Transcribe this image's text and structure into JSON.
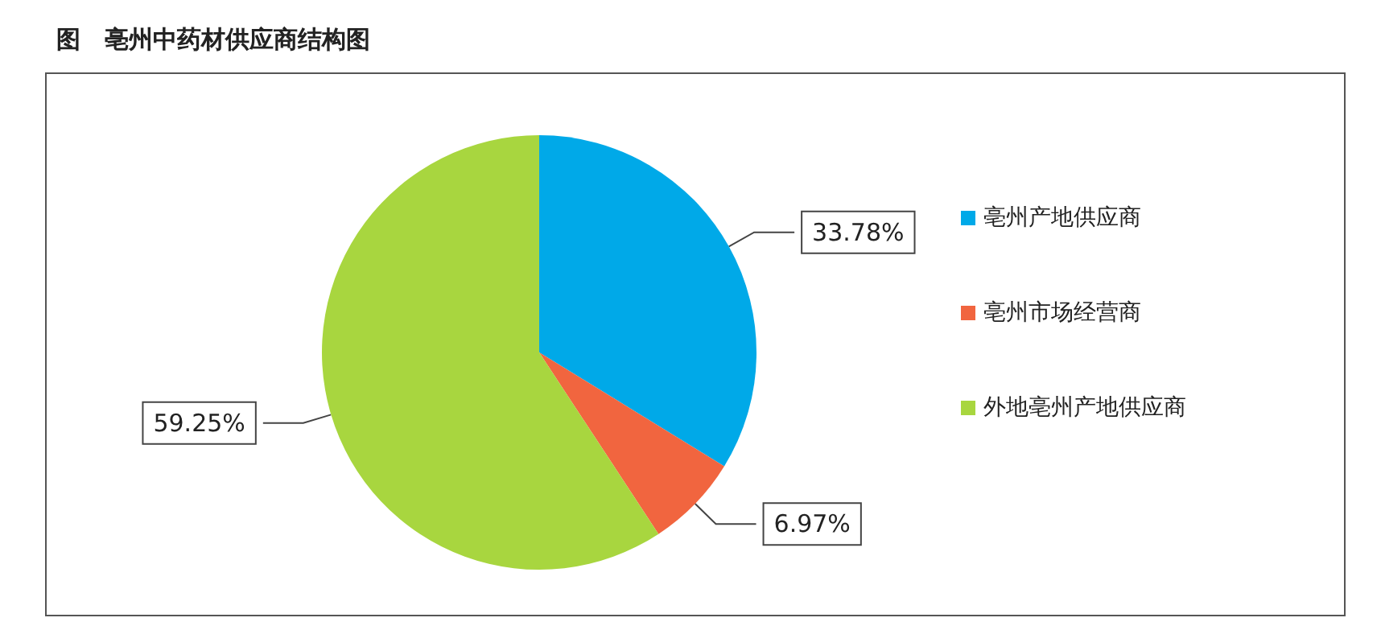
{
  "chart_data": {
    "type": "pie",
    "title": "图　亳州中药材供应商结构图",
    "categories": [
      "亳州产地供应商",
      "亳州市场经营商",
      "外地亳州产地供应商"
    ],
    "values": [
      33.78,
      6.97,
      59.25
    ],
    "colors": [
      "#00a9e8",
      "#f1653f",
      "#a8d63f"
    ],
    "value_labels": [
      "33.78%",
      "6.97%",
      "59.25%"
    ],
    "legend": "right"
  }
}
